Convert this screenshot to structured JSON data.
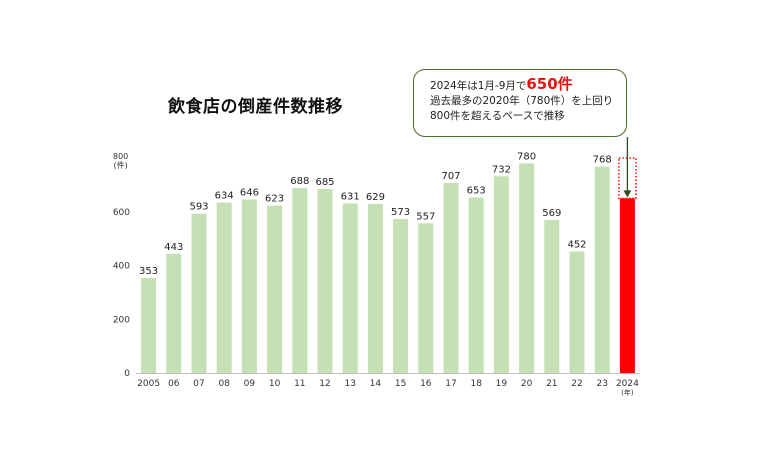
{
  "title": "飲食店の倒産件数推移",
  "callout": {
    "line1_prefix": "2024年は1月-9月で",
    "line1_highlight": "650件",
    "line2": "過去最多の2020年（780件）を上回り",
    "line3": "800件を超えるペースで推移"
  },
  "y_unit": "(件)",
  "x_unit": "(年)",
  "colors": {
    "bar": "#c5e0b4",
    "highlight": "#ff0000",
    "callout_border": "#4a6b2a"
  },
  "chart_data": {
    "type": "bar",
    "title": "飲食店の倒産件数推移",
    "categories": [
      "2005",
      "06",
      "07",
      "08",
      "09",
      "10",
      "11",
      "12",
      "13",
      "14",
      "15",
      "16",
      "17",
      "18",
      "19",
      "20",
      "21",
      "22",
      "23",
      "2024"
    ],
    "values": [
      353,
      443,
      593,
      634,
      646,
      623,
      688,
      685,
      631,
      629,
      573,
      557,
      707,
      653,
      732,
      780,
      569,
      452,
      768,
      650
    ],
    "data_labels": [
      "353",
      "443",
      "593",
      "634",
      "646",
      "623",
      "688",
      "685",
      "631",
      "629",
      "573",
      "557",
      "707",
      "653",
      "732",
      "780",
      "569",
      "452",
      "768",
      ""
    ],
    "ylim": [
      0,
      800
    ],
    "yticks": [
      0,
      200,
      400,
      600,
      800
    ],
    "ytick_labels": [
      "0",
      "200",
      "400",
      "600",
      "800"
    ],
    "xlabel": "(年)",
    "ylabel": "(件)",
    "grid": false,
    "highlight_index": 19,
    "projection_value": 800
  }
}
